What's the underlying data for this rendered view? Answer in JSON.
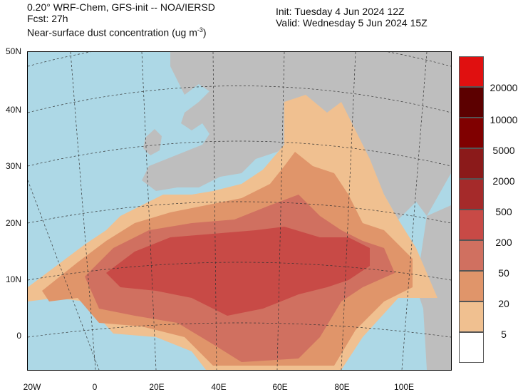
{
  "header": {
    "model_line": "0.20° WRF-Chem, GFS-init -- NOA/IERSD",
    "fcst_line": "Fcst: 27h",
    "field_line": "Near-surface dust concentration (ug m",
    "field_unit_exp": "-3",
    "field_close": ")",
    "init_line": "Init: Tuesday 4 Jun 2024  12Z",
    "valid_line": "Valid: Wednesday 5 Jun 2024  15Z"
  },
  "map": {
    "lat_labels": [
      "50N",
      "40N",
      "30N",
      "20N",
      "10N",
      "0"
    ],
    "lon_labels": [
      "20W",
      "0",
      "20E",
      "40E",
      "60E",
      "80E",
      "100E"
    ],
    "colors": {
      "ocean": "#add8e6",
      "land": "#bebebe",
      "dust_5": "#f0c090",
      "dust_20": "#e0956a",
      "dust_50": "#d07060",
      "dust_200": "#c84a46"
    }
  },
  "legend": {
    "labels": [
      "20000",
      "10000",
      "5000",
      "2000",
      "500",
      "200",
      "50",
      "20",
      "5"
    ],
    "colors": [
      "#e01010",
      "#5c0000",
      "#800000",
      "#8b1a1a",
      "#a52a2a",
      "#c84a46",
      "#d07060",
      "#e0956a",
      "#f0c090",
      "#ffffff"
    ]
  }
}
